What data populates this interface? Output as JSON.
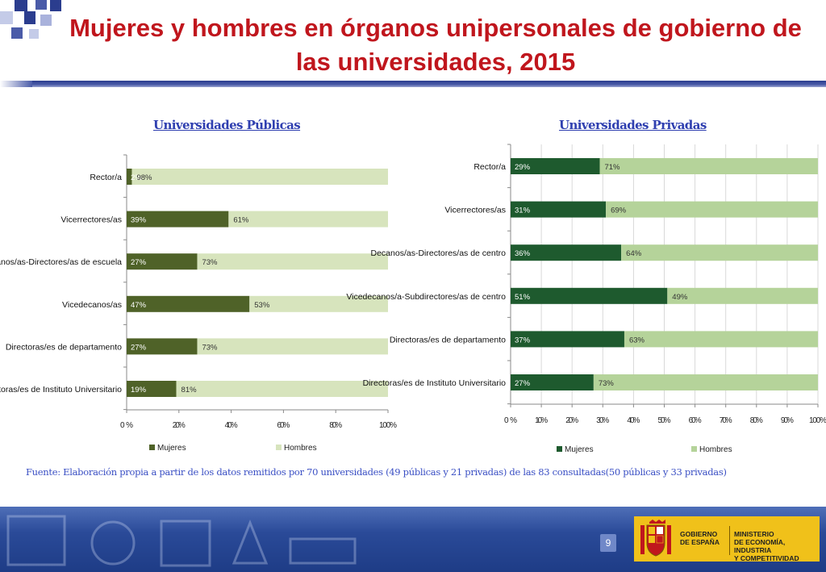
{
  "slide": {
    "title_line1": "Mujeres y hombres en órganos unipersonales de gobierno de",
    "title_line2": "las universidades, 2015",
    "page_number": "9",
    "source_note": "Fuente: Elaboración propia a partir de los datos remitidos por 70 universidades (49 públicas y  21 privadas) de las 83 consultadas(50 públicas y 33 privadas)"
  },
  "footer": {
    "gov_line1": "GOBIERNO",
    "gov_line2": "DE ESPAÑA",
    "ministry_line1": "MINISTERIO",
    "ministry_line2": "DE ECONOMÍA, INDUSTRIA",
    "ministry_line3": "Y COMPETITIVIDAD"
  },
  "colors": {
    "title": "#c0161d",
    "public_women": "#4f6228",
    "public_men": "#d7e4bd",
    "private_women": "#1e5a2e",
    "private_men": "#b5d39a"
  },
  "chart_data": [
    {
      "type": "bar",
      "orientation": "horizontal-stacked",
      "title": "Universidades Públicas",
      "categories": [
        "Rector/a",
        "Vicerrectores/as",
        "Decanos/as-Directores/as de escuela",
        "Vicedecanos/as",
        "Directoras/es de departamento",
        "Directoras/es de Instituto Universitario"
      ],
      "series": [
        {
          "name": "Mujeres",
          "values": [
            2,
            39,
            27,
            47,
            27,
            19
          ]
        },
        {
          "name": "Hombres",
          "values": [
            98,
            61,
            73,
            53,
            73,
            81
          ]
        }
      ],
      "value_labels": {
        "Mujeres": [
          "2%",
          "39%",
          "27%",
          "47%",
          "27%",
          "19%"
        ],
        "Hombres": [
          "98%",
          "61%",
          "73%",
          "53%",
          "73%",
          "81%"
        ]
      },
      "xticks": [
        "0%",
        "20%",
        "40%",
        "60%",
        "80%",
        "100%"
      ],
      "xtick_values": [
        0,
        20,
        40,
        60,
        80,
        100
      ],
      "xlim": [
        0,
        100
      ],
      "legend": [
        "Mujeres",
        "Hombres"
      ],
      "legend_position": "bottom"
    },
    {
      "type": "bar",
      "orientation": "horizontal-stacked",
      "title": "Universidades Privadas",
      "categories": [
        "Rector/a",
        "Vicerrectores/as",
        "Decanos/as-Directores/as de centro",
        "Vicedecanos/a-Subdirectores/as de centro",
        "Directoras/es de departamento",
        "Directoras/es de Instituto Universitario"
      ],
      "series": [
        {
          "name": "Mujeres",
          "values": [
            29,
            31,
            36,
            51,
            37,
            27
          ]
        },
        {
          "name": "Hombres",
          "values": [
            71,
            69,
            64,
            49,
            63,
            73
          ]
        }
      ],
      "value_labels": {
        "Mujeres": [
          "29%",
          "31%",
          "36%",
          "51%",
          "37%",
          "27%"
        ],
        "Hombres": [
          "71%",
          "69%",
          "64%",
          "49%",
          "63%",
          "73%"
        ]
      },
      "xticks": [
        "0%",
        "10%",
        "20%",
        "30%",
        "40%",
        "50%",
        "60%",
        "70%",
        "80%",
        "90%",
        "100%"
      ],
      "xtick_values": [
        0,
        10,
        20,
        30,
        40,
        50,
        60,
        70,
        80,
        90,
        100
      ],
      "xlim": [
        0,
        100
      ],
      "grid": true,
      "legend": [
        "Mujeres",
        "Hombres"
      ],
      "legend_position": "bottom"
    }
  ]
}
